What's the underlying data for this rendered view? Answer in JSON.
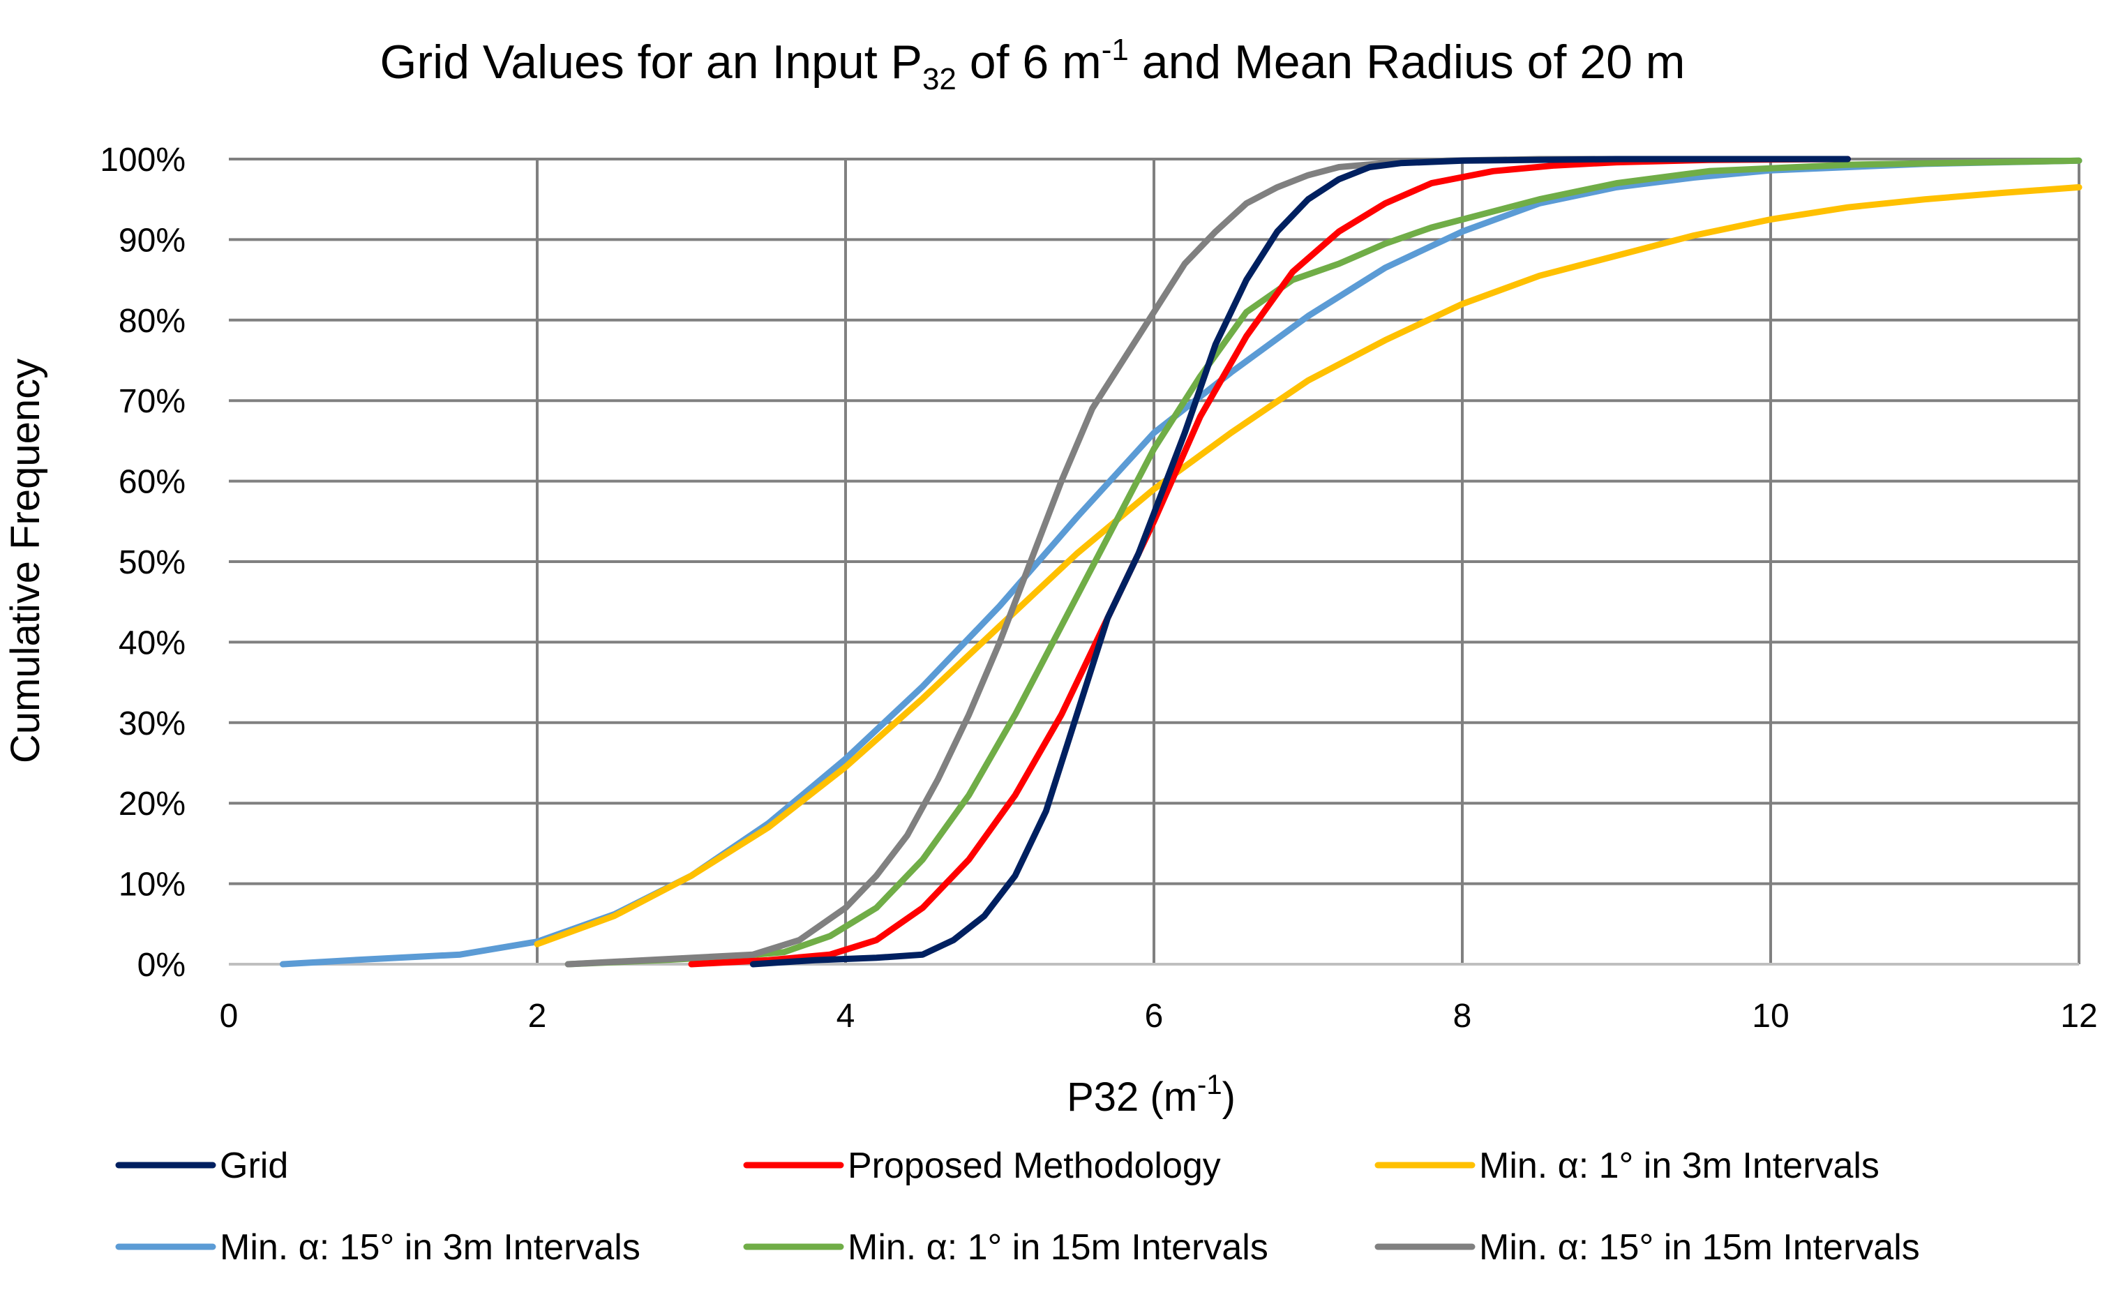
{
  "chart_data": {
    "type": "line",
    "title": {
      "prefix": "Grid Values for an Input P",
      "sub": "32",
      "mid": " of 6 m",
      "sup": "-1",
      "suffix": " and Mean Radius of 20 m"
    },
    "xlabel": {
      "text": "P32 (m",
      "sup": "-1",
      "close": ")"
    },
    "ylabel": "Cumulative Frequency",
    "xlim": [
      0,
      12
    ],
    "ylim": [
      0,
      1
    ],
    "x_ticks": [
      0,
      2,
      4,
      6,
      8,
      10,
      12
    ],
    "x_tick_labels": [
      "0",
      "2",
      "4",
      "6",
      "8",
      "10",
      "12"
    ],
    "y_ticks": [
      0,
      0.1,
      0.2,
      0.3,
      0.4,
      0.5,
      0.6,
      0.7,
      0.8,
      0.9,
      1.0
    ],
    "y_tick_labels": [
      "0%",
      "10%",
      "20%",
      "30%",
      "40%",
      "50%",
      "60%",
      "70%",
      "80%",
      "90%",
      "100%"
    ],
    "grid": true,
    "legend_position": "bottom",
    "series": [
      {
        "name": "Grid",
        "color": "#002060",
        "x": [
          3.4,
          3.8,
          4.2,
          4.5,
          4.7,
          4.9,
          5.1,
          5.3,
          5.5,
          5.7,
          5.9,
          6.0,
          6.2,
          6.4,
          6.6,
          6.8,
          7.0,
          7.2,
          7.4,
          7.6,
          8.0,
          9.0,
          10.5
        ],
        "y": [
          0.0,
          0.005,
          0.008,
          0.012,
          0.03,
          0.06,
          0.11,
          0.19,
          0.31,
          0.43,
          0.51,
          0.56,
          0.66,
          0.77,
          0.85,
          0.91,
          0.95,
          0.975,
          0.99,
          0.995,
          0.998,
          1.0,
          1.0
        ]
      },
      {
        "name": "Proposed Methodology",
        "color": "#FF0000",
        "x": [
          3.0,
          3.5,
          3.9,
          4.2,
          4.5,
          4.8,
          5.1,
          5.4,
          5.7,
          6.0,
          6.3,
          6.6,
          6.9,
          7.2,
          7.5,
          7.8,
          8.2,
          8.6,
          9.0,
          9.6,
          10.5
        ],
        "y": [
          0.0,
          0.005,
          0.012,
          0.03,
          0.07,
          0.13,
          0.21,
          0.31,
          0.43,
          0.55,
          0.68,
          0.78,
          0.86,
          0.91,
          0.945,
          0.97,
          0.985,
          0.992,
          0.996,
          0.999,
          1.0
        ]
      },
      {
        "name": "Min. α: 1° in 3m Intervals",
        "color": "#FFC000",
        "x": [
          2.0,
          2.5,
          3.0,
          3.5,
          4.0,
          4.5,
          5.0,
          5.5,
          6.0,
          6.5,
          7.0,
          7.5,
          8.0,
          8.5,
          9.0,
          9.5,
          10.0,
          10.5,
          11.0,
          11.5,
          12.0
        ],
        "y": [
          0.025,
          0.06,
          0.11,
          0.17,
          0.245,
          0.33,
          0.42,
          0.51,
          0.59,
          0.66,
          0.725,
          0.775,
          0.82,
          0.855,
          0.88,
          0.905,
          0.925,
          0.94,
          0.95,
          0.958,
          0.965
        ]
      },
      {
        "name": "Min. α: 15° in 3m Intervals",
        "color": "#5B9BD5",
        "x": [
          0.35,
          0.8,
          1.5,
          2.0,
          2.5,
          3.0,
          3.5,
          4.0,
          4.5,
          5.0,
          5.5,
          6.0,
          6.5,
          7.0,
          7.5,
          8.0,
          8.5,
          9.0,
          9.5,
          10.0,
          11.0,
          12.0
        ],
        "y": [
          0.0,
          0.005,
          0.012,
          0.028,
          0.062,
          0.11,
          0.175,
          0.255,
          0.345,
          0.445,
          0.555,
          0.66,
          0.735,
          0.805,
          0.865,
          0.91,
          0.945,
          0.965,
          0.977,
          0.986,
          0.994,
          0.998
        ]
      },
      {
        "name": "Min. α: 1° in 15m Intervals",
        "color": "#70AD47",
        "x": [
          2.2,
          2.8,
          3.3,
          3.6,
          3.9,
          4.2,
          4.5,
          4.8,
          5.1,
          5.4,
          5.7,
          6.0,
          6.3,
          6.6,
          6.9,
          7.2,
          7.5,
          7.8,
          8.1,
          8.5,
          9.0,
          9.6,
          10.5,
          12.0
        ],
        "y": [
          0.0,
          0.005,
          0.01,
          0.015,
          0.035,
          0.07,
          0.13,
          0.21,
          0.31,
          0.42,
          0.53,
          0.64,
          0.73,
          0.81,
          0.85,
          0.87,
          0.895,
          0.915,
          0.93,
          0.95,
          0.97,
          0.985,
          0.993,
          0.998
        ]
      },
      {
        "name": "Min. α: 15° in 15m Intervals",
        "color": "#808080",
        "x": [
          2.2,
          2.8,
          3.4,
          3.7,
          4.0,
          4.2,
          4.4,
          4.6,
          4.8,
          5.0,
          5.2,
          5.4,
          5.6,
          5.8,
          6.0,
          6.2,
          6.4,
          6.6,
          6.8,
          7.0,
          7.2,
          7.5,
          7.9,
          8.5,
          9.5
        ],
        "y": [
          0.0,
          0.006,
          0.012,
          0.03,
          0.07,
          0.11,
          0.16,
          0.23,
          0.31,
          0.4,
          0.5,
          0.6,
          0.69,
          0.75,
          0.81,
          0.87,
          0.91,
          0.945,
          0.965,
          0.98,
          0.99,
          0.995,
          0.998,
          1.0,
          1.0
        ]
      }
    ]
  }
}
